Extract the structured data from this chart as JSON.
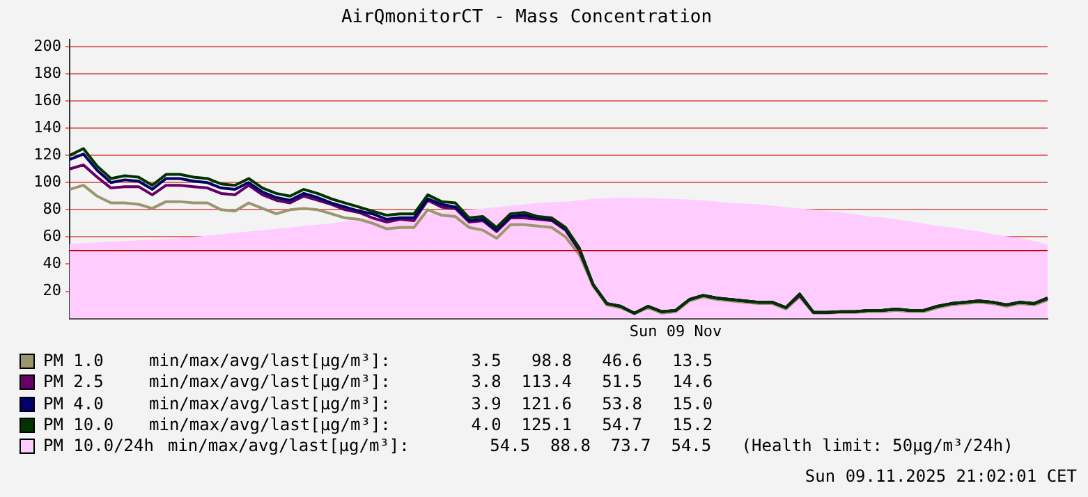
{
  "chart_data": {
    "type": "line",
    "title": "AirQmonitorCT - Mass Concentration",
    "categories": [
      null,
      null,
      null,
      null,
      null,
      null,
      null,
      null,
      null,
      null,
      null,
      null,
      null,
      null,
      null,
      null,
      null,
      null,
      null,
      null,
      null,
      null,
      null,
      null,
      null,
      null,
      null,
      null,
      null,
      null,
      null,
      null,
      null,
      null,
      null,
      null,
      null,
      null,
      null,
      null,
      null,
      null,
      null,
      null,
      "Sun 09 Nov",
      null,
      null,
      null,
      null,
      null,
      null,
      null,
      null,
      null,
      null,
      null,
      null,
      null,
      null,
      null,
      null,
      null,
      null,
      null,
      null,
      null,
      null,
      null,
      null,
      null,
      null,
      null
    ],
    "series": [
      {
        "name": "PM 1.0",
        "type": "line",
        "color": "#9c9670",
        "values": [
          95,
          98,
          90,
          85,
          85,
          84,
          81,
          86,
          86,
          85,
          85,
          80,
          79,
          85,
          81,
          77,
          80,
          81,
          80,
          77,
          74,
          73,
          70,
          66,
          67,
          67,
          80,
          76,
          75,
          67,
          65,
          59,
          69,
          69,
          68,
          67,
          60,
          47,
          24,
          10,
          8,
          3.5,
          8,
          4,
          5,
          13,
          16,
          14,
          13,
          12,
          11,
          11,
          7,
          16,
          4,
          4,
          4.5,
          4.5,
          5,
          5,
          6,
          5,
          5,
          8,
          10,
          11,
          12,
          11,
          9,
          11,
          10,
          13.5
        ]
      },
      {
        "name": "PM 2.5",
        "type": "line",
        "color": "#660066",
        "values": [
          110,
          113,
          104,
          96,
          97,
          97,
          91,
          98,
          98,
          97,
          96,
          92,
          91,
          98,
          91,
          87,
          85,
          90,
          87,
          84,
          80,
          78,
          74,
          71,
          73,
          72,
          87,
          82,
          81,
          71,
          72,
          64,
          74,
          74,
          73,
          72,
          65,
          50,
          25,
          11,
          9,
          3.8,
          9,
          5,
          6,
          14,
          17,
          15,
          14,
          13,
          12,
          12,
          8,
          17,
          4.5,
          4.5,
          5,
          5,
          6,
          6,
          7,
          6,
          6,
          9,
          11,
          12,
          13,
          12,
          10,
          12,
          11,
          14.6
        ]
      },
      {
        "name": "PM 4.0",
        "type": "line",
        "color": "#000066",
        "values": [
          117,
          121,
          109,
          100,
          102,
          101,
          95,
          103,
          103,
          101,
          100,
          96,
          95,
          100,
          93,
          89,
          87,
          92,
          89,
          85,
          82,
          79,
          77,
          73,
          74,
          74,
          88,
          84,
          82,
          72,
          73,
          65,
          75,
          76,
          74,
          73,
          66,
          51,
          25,
          11,
          9,
          3.9,
          9,
          5,
          6,
          14,
          17,
          15,
          14,
          13,
          12,
          12,
          8,
          18,
          4.5,
          4.5,
          5,
          5,
          6,
          6,
          7,
          6,
          6,
          9,
          11,
          12,
          13,
          12,
          10,
          12,
          11,
          15.0
        ]
      },
      {
        "name": "PM 10.0",
        "type": "line",
        "color": "#003300",
        "values": [
          120,
          125,
          112,
          103,
          105,
          104,
          98,
          106,
          106,
          104,
          103,
          99,
          98,
          103,
          96,
          92,
          90,
          95,
          92,
          88,
          85,
          82,
          79,
          76,
          77,
          77,
          91,
          86,
          85,
          74,
          75,
          67,
          77,
          78,
          75,
          74,
          67,
          52,
          25,
          11,
          9,
          4.0,
          9,
          5,
          6,
          14,
          17,
          15,
          14,
          13,
          12,
          12,
          8,
          18,
          4.5,
          4.5,
          5,
          5,
          6,
          6,
          7,
          6,
          6,
          9,
          11,
          12,
          13,
          12,
          10,
          12,
          11,
          15.2
        ]
      },
      {
        "name": "PM 10.0/24h",
        "type": "area",
        "color": "#ffccff",
        "values": [
          55,
          55.5,
          56,
          56.5,
          57,
          57.5,
          58,
          58.5,
          59,
          60,
          61,
          62,
          63,
          64,
          65,
          66,
          67,
          68,
          69,
          70,
          71.5,
          72.5,
          73.5,
          74.5,
          75.5,
          76.5,
          77,
          78,
          79,
          80,
          81,
          82,
          83,
          84,
          85,
          85.5,
          86,
          87,
          88,
          88.5,
          88.8,
          88.8,
          88.5,
          88.3,
          88,
          87.5,
          87,
          86,
          85,
          84.5,
          84,
          83,
          82,
          81,
          80,
          79,
          78,
          77,
          75,
          74.5,
          73,
          71.5,
          70,
          68,
          67,
          65.5,
          64,
          62,
          60.5,
          59,
          57,
          54.5
        ]
      }
    ],
    "ylim": [
      0,
      205
    ],
    "yticks": [
      20,
      40,
      60,
      80,
      100,
      120,
      140,
      160,
      180,
      200
    ],
    "ref_lines": [
      {
        "axis": "y",
        "value": 50,
        "color": "#cc0000"
      }
    ],
    "grid": "y",
    "legend": "bottom",
    "marker": "none",
    "line_style": "solid",
    "annotations": [
      "min/max/avg/last[µg/m³]:        3.5   98.8   46.6   13.5",
      "min/max/avg/last[µg/m³]:        3.8  113.4   51.5   14.6",
      "min/max/avg/last[µg/m³]:        3.9  121.6   53.8   15.0",
      "min/max/avg/last[µg/m³]:        4.0  125.1   54.7   15.2",
      "min/max/avg/last[µg/m³]:        54.5  88.8  73.7  54.5",
      "(Health limit: 50µg/m³/24h)",
      "Sun 09.11.2025 21:02:01 CET"
    ]
  }
}
